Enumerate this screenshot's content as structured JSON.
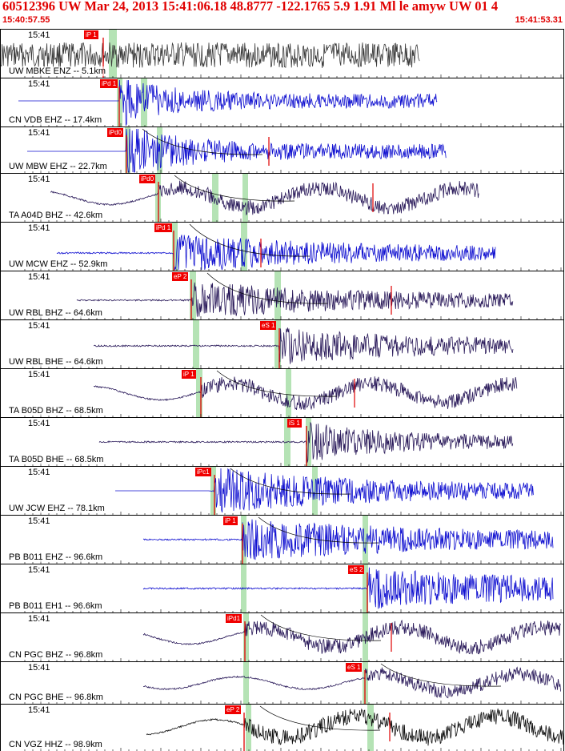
{
  "header": {
    "title": "60512396 UW Mar 24, 2013 15:41:06.18    48.8777  -122.1765  5.9  1.91 Ml le amyw UW 01    4",
    "start_time": "15:40:57.55",
    "end_time": "15:41:53.31"
  },
  "panels": [
    {
      "time": "15:41",
      "station": "UW MBKE ENZ -- 5.1km",
      "pick_label": "iP 1",
      "color": "#3a3a3a"
    },
    {
      "time": "15:41",
      "station": "CN VDB EHZ -- 17.4km",
      "pick_label": "iPd 1",
      "color": "#1010d0"
    },
    {
      "time": "15:41",
      "station": "UW MBW EHZ -- 22.7km",
      "pick_label": "iPd0",
      "color": "#1010d0"
    },
    {
      "time": "15:41",
      "station": "TA A04D BHZ -- 42.6km",
      "pick_label": "iPd0",
      "color": "#2a1a5a"
    },
    {
      "time": "15:41",
      "station": "UW MCW EHZ -- 52.9km",
      "pick_label": "iPd 1",
      "color": "#1010d0"
    },
    {
      "time": "15:41",
      "station": "UW RBL BHZ -- 64.6km",
      "pick_label": "eP 2",
      "color": "#2a1a5a"
    },
    {
      "time": "15:41",
      "station": "UW RBL BHE -- 64.6km",
      "pick_label": "eS 1",
      "color": "#2a1a5a"
    },
    {
      "time": "15:41",
      "station": "TA B05D BHZ -- 68.5km",
      "pick_label": "iP 1",
      "color": "#2a1a5a"
    },
    {
      "time": "15:41",
      "station": "TA B05D BHE -- 68.5km",
      "pick_label": "iS 1",
      "color": "#2a1a5a"
    },
    {
      "time": "15:41",
      "station": "UW JCW EHZ -- 78.1km",
      "pick_label": "iPc1",
      "color": "#1010d0"
    },
    {
      "time": "15:41",
      "station": "PB B011 EHZ -- 96.6km",
      "pick_label": "iP 1",
      "color": "#1010d0"
    },
    {
      "time": "15:41",
      "station": "PB B011 EH1 -- 96.6km",
      "pick_label": "eS 2",
      "color": "#1010d0"
    },
    {
      "time": "15:41",
      "station": "CN PGC BHZ -- 96.8km",
      "pick_label": "iPd1",
      "color": "#2a1a5a"
    },
    {
      "time": "15:41",
      "station": "CN PGC BHE -- 96.8km",
      "pick_label": "eS 1",
      "color": "#2a1a5a"
    },
    {
      "time": "15:41",
      "station": "CN VGZ HHZ -- 98.9km",
      "pick_label": "eP 2",
      "color": "#101010"
    }
  ]
}
